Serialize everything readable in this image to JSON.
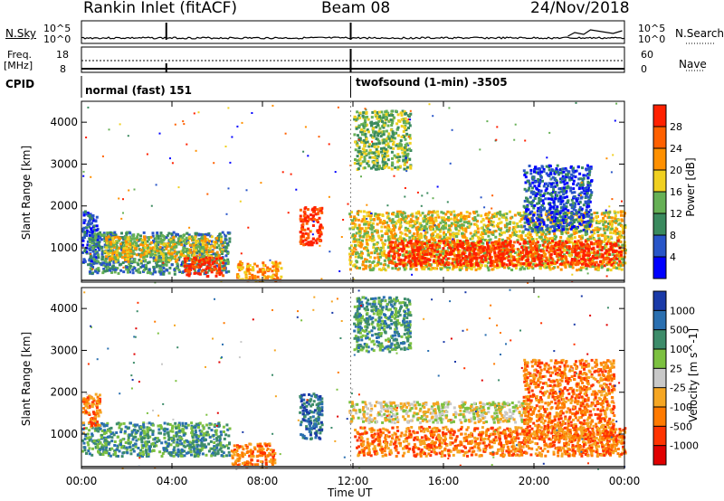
{
  "header": {
    "station": "Rankin Inlet (fitACF)",
    "beam": "Beam 08",
    "date": "24/Nov/2018"
  },
  "strips": {
    "nsky_label": "N.Sky",
    "nsky_tick_top": "10^5",
    "nsky_tick_bottom": "10^0",
    "nsearch_label": "N.Search",
    "nsearch_tick_top": "10^5",
    "nsearch_tick_bottom": "10^0",
    "freq_label_1": "Freq.",
    "freq_label_2": "[MHz]",
    "freq_tick_top": "18",
    "freq_tick_bottom": "8",
    "nave_label": "Nave",
    "nave_tick_top": "60",
    "nave_tick_bottom": "0",
    "cpid_label": "CPID",
    "cpid_1": "normal (fast) 151",
    "cpid_2": "twofsound (1-min) -3505"
  },
  "chart_data": [
    {
      "type": "heatmap",
      "name": "power",
      "ylabel": "Slant Range [km]",
      "y_ticks": [
        "1000",
        "2000",
        "3000",
        "4000"
      ],
      "ylim": [
        180,
        4500
      ],
      "x_ticks": [
        "00:00",
        "04:00",
        "08:00",
        "12:00",
        "16:00",
        "20:00",
        "00:00"
      ],
      "xlim_hours": [
        0,
        24
      ],
      "colorbar": {
        "label": "Power [dB]",
        "ticks": [
          "4",
          "8",
          "12",
          "16",
          "20",
          "24",
          "28"
        ],
        "range": [
          0,
          30
        ],
        "colors": [
          "#0000ff",
          "#2855c8",
          "#3a8a5e",
          "#66b055",
          "#f0d020",
          "#ff9000",
          "#ff6000",
          "#ff2000"
        ]
      },
      "blobs": [
        {
          "t0": 0.0,
          "t1": 0.7,
          "r0": 600,
          "r1": 1900,
          "level": 1
        },
        {
          "t0": 0.3,
          "t1": 6.5,
          "r0": 400,
          "r1": 1400,
          "level": 2
        },
        {
          "t0": 1.0,
          "t1": 6.2,
          "r0": 700,
          "r1": 1300,
          "level": 4
        },
        {
          "t0": 4.5,
          "t1": 6.3,
          "r0": 350,
          "r1": 800,
          "level": 7
        },
        {
          "t0": 6.8,
          "t1": 8.8,
          "r0": 230,
          "r1": 700,
          "level": 5
        },
        {
          "t0": 9.6,
          "t1": 10.6,
          "r0": 1100,
          "r1": 2000,
          "level": 7
        },
        {
          "t0": 11.8,
          "t1": 24.0,
          "r0": 500,
          "r1": 1900,
          "level": 4
        },
        {
          "t0": 13.5,
          "t1": 23.8,
          "r0": 600,
          "r1": 1200,
          "level": 7
        },
        {
          "t0": 12.0,
          "t1": 14.5,
          "r0": 2900,
          "r1": 4300,
          "level": 3
        },
        {
          "t0": 19.5,
          "t1": 22.5,
          "r0": 1400,
          "r1": 3000,
          "level": 1
        }
      ]
    },
    {
      "type": "heatmap",
      "name": "velocity",
      "ylabel": "Slant Range [km]",
      "y_ticks": [
        "1000",
        "2000",
        "3000",
        "4000"
      ],
      "ylim": [
        180,
        4500
      ],
      "x_ticks": [
        "00:00",
        "04:00",
        "08:00",
        "12:00",
        "16:00",
        "20:00",
        "00:00"
      ],
      "xlim_hours": [
        0,
        24
      ],
      "xlabel": "Time UT",
      "colorbar": {
        "label": "Velocity [m s^-1]",
        "ticks": [
          "1000",
          "500",
          "100",
          "25",
          "-25",
          "-100",
          "-500",
          "-1000"
        ],
        "colors": [
          "#1a3aa8",
          "#2a6fb0",
          "#3d8c6a",
          "#7cc040",
          "#c8c8c8",
          "#f5a623",
          "#ff7a00",
          "#ff3300",
          "#e00000"
        ]
      },
      "blobs": [
        {
          "t0": 0.0,
          "t1": 6.5,
          "r0": 500,
          "r1": 1300,
          "level": 2
        },
        {
          "t0": 0.0,
          "t1": 0.8,
          "r0": 1200,
          "r1": 2000,
          "level": 6
        },
        {
          "t0": 6.5,
          "t1": 8.5,
          "r0": 250,
          "r1": 800,
          "level": 6
        },
        {
          "t0": 9.6,
          "t1": 10.6,
          "r0": 900,
          "r1": 2000,
          "level": 1
        },
        {
          "t0": 11.8,
          "t1": 19.5,
          "r0": 1300,
          "r1": 1800,
          "level": 4
        },
        {
          "t0": 12.0,
          "t1": 24.0,
          "r0": 500,
          "r1": 1200,
          "level": 6
        },
        {
          "t0": 19.5,
          "t1": 23.5,
          "r0": 900,
          "r1": 2800,
          "level": 6
        },
        {
          "t0": 12.0,
          "t1": 14.5,
          "r0": 3000,
          "r1": 4300,
          "level": 2
        }
      ]
    }
  ]
}
